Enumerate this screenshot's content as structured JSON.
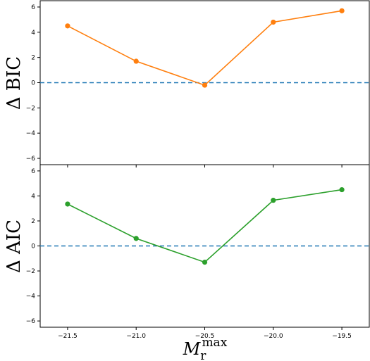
{
  "chart_data": [
    {
      "type": "line",
      "ylabel": "Δ BIC",
      "xlabel": "",
      "x": [
        -21.5,
        -21.0,
        -20.5,
        -20.0,
        -19.5
      ],
      "series": [
        {
          "values": [
            4.5,
            1.7,
            -0.2,
            4.8,
            5.7
          ],
          "color": "#ff7f0e",
          "marker": "circle"
        }
      ],
      "reference_line": {
        "y": 0,
        "style": "dashed",
        "color": "#1f77b4"
      },
      "xlim": [
        -21.7,
        -19.3
      ],
      "ylim": [
        -6.5,
        6.5
      ],
      "yticks": [
        -6,
        -4,
        -2,
        0,
        2,
        4,
        6
      ],
      "ytick_labels": [
        "−6",
        "−4",
        "−2",
        "0",
        "2",
        "4",
        "6"
      ],
      "grid": false
    },
    {
      "type": "line",
      "ylabel": "Δ AIC",
      "xlabel_main": "M",
      "xlabel_sub": "r",
      "xlabel_sup": "max",
      "x": [
        -21.5,
        -21.0,
        -20.5,
        -20.0,
        -19.5
      ],
      "series": [
        {
          "values": [
            3.35,
            0.6,
            -1.3,
            3.65,
            4.5
          ],
          "color": "#2ca02c",
          "marker": "circle"
        }
      ],
      "reference_line": {
        "y": 0,
        "style": "dashed",
        "color": "#1f77b4"
      },
      "xlim": [
        -21.7,
        -19.3
      ],
      "ylim": [
        -6.5,
        6.5
      ],
      "xticks": [
        -21.5,
        -21.0,
        -20.5,
        -20.0,
        -19.5
      ],
      "xtick_labels": [
        "−21.5",
        "−21.0",
        "−20.5",
        "−20.0",
        "−19.5"
      ],
      "yticks": [
        -6,
        -4,
        -2,
        0,
        2,
        4,
        6
      ],
      "ytick_labels": [
        "−6",
        "−4",
        "−2",
        "0",
        "2",
        "4",
        "6"
      ],
      "grid": false
    }
  ]
}
